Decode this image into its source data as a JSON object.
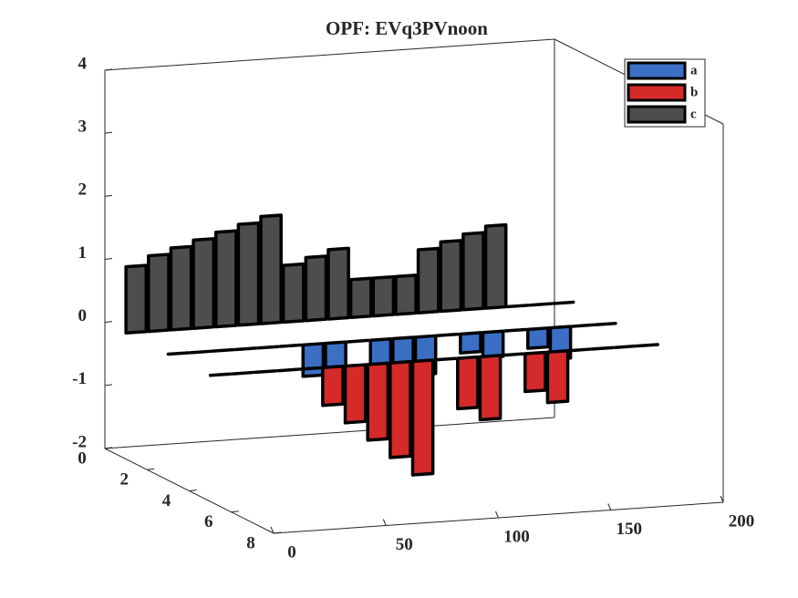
{
  "chart_data": {
    "type": "bar3d",
    "title": "OPF: EVq3PVnoon",
    "x": [
      0,
      10,
      20,
      30,
      40,
      50,
      60,
      70,
      80,
      90,
      100,
      110,
      120,
      130,
      140,
      150,
      160,
      170,
      180,
      190
    ],
    "series": [
      {
        "name": "a",
        "color": "#3a6fc4",
        "depth": 3,
        "values": [
          0,
          0,
          0,
          0,
          0,
          0,
          -0.5,
          -0.6,
          0,
          -0.4,
          -0.5,
          -0.6,
          0,
          -0.3,
          -0.4,
          0,
          -0.3,
          -0.5,
          0,
          0
        ]
      },
      {
        "name": "b",
        "color": "#d42a2a",
        "depth": 5,
        "values": [
          0,
          0,
          0,
          0,
          0,
          -0.6,
          -0.9,
          -1.2,
          -1.5,
          -1.8,
          0,
          -0.8,
          -1.0,
          0,
          -0.6,
          -0.8,
          0,
          0,
          0,
          0
        ]
      },
      {
        "name": "c",
        "color": "#4d4d4d",
        "depth": 1,
        "values": [
          1.05,
          1.2,
          1.3,
          1.4,
          1.5,
          1.6,
          1.7,
          0.9,
          1.0,
          1.1,
          0.6,
          0.6,
          0.6,
          1.0,
          1.1,
          1.2,
          1.3,
          0,
          0,
          0
        ]
      }
    ],
    "xlim": [
      0,
      200
    ],
    "xticks": [
      0,
      50,
      100,
      150,
      200
    ],
    "ylim": [
      0,
      8
    ],
    "yticks": [
      0,
      2,
      4,
      6,
      8
    ],
    "zlim": [
      -2,
      4
    ],
    "zticks": [
      -2,
      -1,
      0,
      1,
      2,
      3,
      4
    ],
    "legend": "northeast",
    "grid": false
  }
}
